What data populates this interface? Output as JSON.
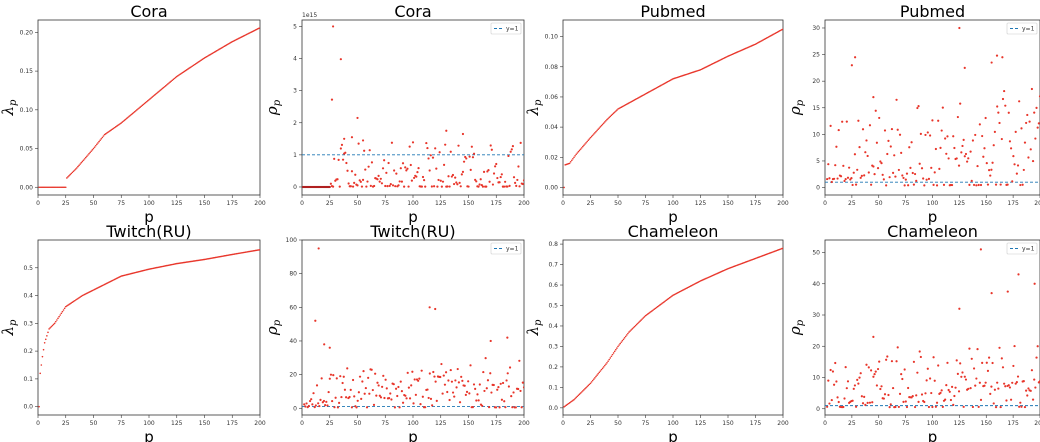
{
  "colors": {
    "points": "#e8352a",
    "baseline": "#1f77b4",
    "axes": "#333333"
  },
  "chart_data": [
    {
      "type": "scatter",
      "title": "Cora",
      "xlabel": "p",
      "ylabel": "λ",
      "ylabel_sub": "p",
      "xlim": [
        0,
        200
      ],
      "ylim": [
        -0.01,
        0.216
      ],
      "xticks": [
        0,
        25,
        50,
        75,
        100,
        125,
        150,
        175,
        200
      ],
      "xtick_labels": [
        "0",
        "25",
        "50",
        "75",
        "100",
        "125",
        "150",
        "175",
        "200"
      ],
      "yticks": [
        0,
        0.05,
        0.1,
        0.15,
        0.2
      ],
      "ytick_labels": [
        "0.00",
        "0.05",
        "0.10",
        "0.15",
        "0.20"
      ],
      "grid": false,
      "legend": null,
      "curve": [
        [
          1,
          0
        ],
        [
          25,
          0
        ],
        [
          26,
          0.012
        ],
        [
          35,
          0.025
        ],
        [
          50,
          0.05
        ],
        [
          60,
          0.068
        ],
        [
          75,
          0.083
        ],
        [
          100,
          0.113
        ],
        [
          125,
          0.143
        ],
        [
          150,
          0.167
        ],
        [
          175,
          0.188
        ],
        [
          200,
          0.206
        ]
      ]
    },
    {
      "type": "scatter",
      "title": "Cora",
      "xlabel": "p",
      "ylabel": "ρ",
      "ylabel_sub": "p",
      "xlim": [
        0,
        200
      ],
      "ylim": [
        -0.25,
        5.2
      ],
      "offset_text": "1e15",
      "xticks": [
        0,
        25,
        50,
        75,
        100,
        125,
        150,
        175,
        200
      ],
      "xtick_labels": [
        "0",
        "25",
        "50",
        "75",
        "100",
        "125",
        "150",
        "175",
        "200"
      ],
      "yticks": [
        0,
        1,
        2,
        3,
        4,
        5
      ],
      "ytick_labels": [
        "0",
        "1",
        "2",
        "3",
        "4",
        "5"
      ],
      "grid": false,
      "legend": "upper right",
      "legend_label": "y=1",
      "baseline": 1,
      "points": {
        "seed": 11,
        "n": 175,
        "x_start": 26,
        "x_end": 200,
        "low": 0.02,
        "high": 1.4
      },
      "zero_segment": [
        1,
        25
      ],
      "outliers": [
        [
          28,
          5.0
        ],
        [
          35,
          3.98
        ],
        [
          27,
          2.72
        ],
        [
          50,
          2.15
        ],
        [
          45,
          1.55
        ],
        [
          38,
          1.5
        ],
        [
          55,
          1.45
        ],
        [
          130,
          1.75
        ],
        [
          145,
          1.65
        ]
      ]
    },
    {
      "type": "scatter",
      "title": "Pubmed",
      "xlabel": "p",
      "ylabel": "λ",
      "ylabel_sub": "p",
      "xlim": [
        0,
        200
      ],
      "ylim": [
        -0.005,
        0.111
      ],
      "xticks": [
        0,
        25,
        50,
        75,
        100,
        125,
        150,
        175,
        200
      ],
      "xtick_labels": [
        "0",
        "25",
        "50",
        "75",
        "100",
        "125",
        "150",
        "175",
        "200"
      ],
      "yticks": [
        0,
        0.02,
        0.04,
        0.06,
        0.08,
        0.1
      ],
      "ytick_labels": [
        "0.00",
        "0.02",
        "0.04",
        "0.06",
        "0.08",
        "0.10"
      ],
      "grid": false,
      "legend": null,
      "first_point": [
        1,
        0
      ],
      "curve": [
        [
          2,
          0.015
        ],
        [
          6,
          0.016
        ],
        [
          12,
          0.022
        ],
        [
          25,
          0.033
        ],
        [
          40,
          0.045
        ],
        [
          50,
          0.052
        ],
        [
          75,
          0.062
        ],
        [
          100,
          0.072
        ],
        [
          125,
          0.078
        ],
        [
          150,
          0.087
        ],
        [
          175,
          0.095
        ],
        [
          200,
          0.105
        ]
      ]
    },
    {
      "type": "scatter",
      "title": "Pubmed",
      "xlabel": "p",
      "ylabel": "ρ",
      "ylabel_sub": "p",
      "xlim": [
        0,
        200
      ],
      "ylim": [
        -1.4,
        31.5
      ],
      "xticks": [
        0,
        25,
        50,
        75,
        100,
        125,
        150,
        175,
        200
      ],
      "xtick_labels": [
        "0",
        "25",
        "50",
        "75",
        "100",
        "125",
        "150",
        "175",
        "200"
      ],
      "yticks": [
        0,
        5,
        10,
        15,
        20,
        25,
        30
      ],
      "ytick_labels": [
        "0",
        "5",
        "10",
        "15",
        "20",
        "25",
        "30"
      ],
      "grid": false,
      "legend": "upper right",
      "legend_label": "y=1",
      "baseline": 1,
      "points": {
        "seed": 23,
        "n": 185,
        "x_start": 2,
        "x_end": 200,
        "low": 0.8,
        "high": 14,
        "growth": 9
      },
      "outliers": [
        [
          125,
          30.0
        ],
        [
          28,
          24.5
        ],
        [
          25,
          23.0
        ],
        [
          160,
          24.8
        ],
        [
          165,
          24.5
        ],
        [
          155,
          23.5
        ],
        [
          45,
          17.0
        ],
        [
          130,
          22.5
        ]
      ]
    },
    {
      "type": "scatter",
      "title": "Twitch(RU)",
      "xlabel": "p",
      "ylabel": "λ",
      "ylabel_sub": "p",
      "xlim": [
        0,
        200
      ],
      "ylim": [
        -0.03,
        0.6
      ],
      "xticks": [
        0,
        25,
        50,
        75,
        100,
        125,
        150,
        175,
        200
      ],
      "xtick_labels": [
        "0",
        "25",
        "50",
        "75",
        "100",
        "125",
        "150",
        "175",
        "200"
      ],
      "yticks": [
        0,
        0.1,
        0.2,
        0.3,
        0.4,
        0.5
      ],
      "ytick_labels": [
        "0.0",
        "0.1",
        "0.2",
        "0.3",
        "0.4",
        "0.5"
      ],
      "grid": false,
      "legend": null,
      "first_point": [
        1,
        0
      ],
      "curve": [
        [
          2,
          0.12
        ],
        [
          4,
          0.18
        ],
        [
          6,
          0.23
        ],
        [
          10,
          0.28
        ],
        [
          15,
          0.3
        ],
        [
          25,
          0.36
        ],
        [
          40,
          0.4
        ],
        [
          50,
          0.42
        ],
        [
          75,
          0.47
        ],
        [
          100,
          0.495
        ],
        [
          125,
          0.515
        ],
        [
          150,
          0.53
        ],
        [
          175,
          0.548
        ],
        [
          200,
          0.565
        ]
      ]
    },
    {
      "type": "scatter",
      "title": "Twitch(RU)",
      "xlabel": "p",
      "ylabel": "ρ",
      "ylabel_sub": "p",
      "xlim": [
        0,
        200
      ],
      "ylim": [
        -4,
        100
      ],
      "xticks": [
        0,
        25,
        50,
        75,
        100,
        125,
        150,
        175,
        200
      ],
      "xtick_labels": [
        "0",
        "25",
        "50",
        "75",
        "100",
        "125",
        "150",
        "175",
        "200"
      ],
      "yticks": [
        0,
        20,
        40,
        60,
        80,
        100
      ],
      "ytick_labels": [
        "0",
        "20",
        "40",
        "60",
        "80",
        "100"
      ],
      "grid": false,
      "legend": "upper right",
      "legend_label": "y=1",
      "baseline": 1,
      "points": {
        "seed": 37,
        "n": 190,
        "x_start": 2,
        "x_end": 200,
        "low": 1,
        "high": 22,
        "growth": 15
      },
      "outliers": [
        [
          15,
          95.0
        ],
        [
          12,
          52.0
        ],
        [
          20,
          38.0
        ],
        [
          25,
          36.0
        ],
        [
          115,
          60.0
        ],
        [
          120,
          59.0
        ],
        [
          170,
          40.0
        ],
        [
          185,
          42.0
        ]
      ]
    },
    {
      "type": "scatter",
      "title": "Chameleon",
      "xlabel": "p",
      "ylabel": "λ",
      "ylabel_sub": "p",
      "xlim": [
        0,
        200
      ],
      "ylim": [
        -0.035,
        0.82
      ],
      "xticks": [
        0,
        25,
        50,
        75,
        100,
        125,
        150,
        175,
        200
      ],
      "xtick_labels": [
        "0",
        "25",
        "50",
        "75",
        "100",
        "125",
        "150",
        "175",
        "200"
      ],
      "yticks": [
        0,
        0.1,
        0.2,
        0.3,
        0.4,
        0.5,
        0.6,
        0.7,
        0.8
      ],
      "ytick_labels": [
        "0.0",
        "0.1",
        "0.2",
        "0.3",
        "0.4",
        "0.5",
        "0.6",
        "0.7",
        "0.8"
      ],
      "grid": false,
      "legend": null,
      "curve": [
        [
          1,
          0.005
        ],
        [
          10,
          0.04
        ],
        [
          25,
          0.12
        ],
        [
          40,
          0.22
        ],
        [
          50,
          0.3
        ],
        [
          60,
          0.37
        ],
        [
          75,
          0.45
        ],
        [
          100,
          0.55
        ],
        [
          125,
          0.62
        ],
        [
          150,
          0.68
        ],
        [
          175,
          0.73
        ],
        [
          200,
          0.78
        ]
      ]
    },
    {
      "type": "scatter",
      "title": "Chameleon",
      "xlabel": "p",
      "ylabel": "ρ",
      "ylabel_sub": "p",
      "xlim": [
        0,
        200
      ],
      "ylim": [
        -2,
        54
      ],
      "xticks": [
        0,
        25,
        50,
        75,
        100,
        125,
        150,
        175,
        200
      ],
      "xtick_labels": [
        "0",
        "25",
        "50",
        "75",
        "100",
        "125",
        "150",
        "175",
        "200"
      ],
      "yticks": [
        0,
        10,
        20,
        30,
        40,
        50
      ],
      "ytick_labels": [
        "0",
        "10",
        "20",
        "30",
        "40",
        "50"
      ],
      "grid": false,
      "legend": "upper right",
      "legend_label": "y=1",
      "baseline": 1,
      "points": {
        "seed": 53,
        "n": 185,
        "x_start": 2,
        "x_end": 200,
        "low": 1,
        "high": 17,
        "growth": 9
      },
      "outliers": [
        [
          145,
          51.0
        ],
        [
          180,
          43.0
        ],
        [
          195,
          40.0
        ],
        [
          155,
          37.0
        ],
        [
          170,
          37.5
        ],
        [
          125,
          32.0
        ],
        [
          45,
          23.0
        ]
      ]
    }
  ]
}
